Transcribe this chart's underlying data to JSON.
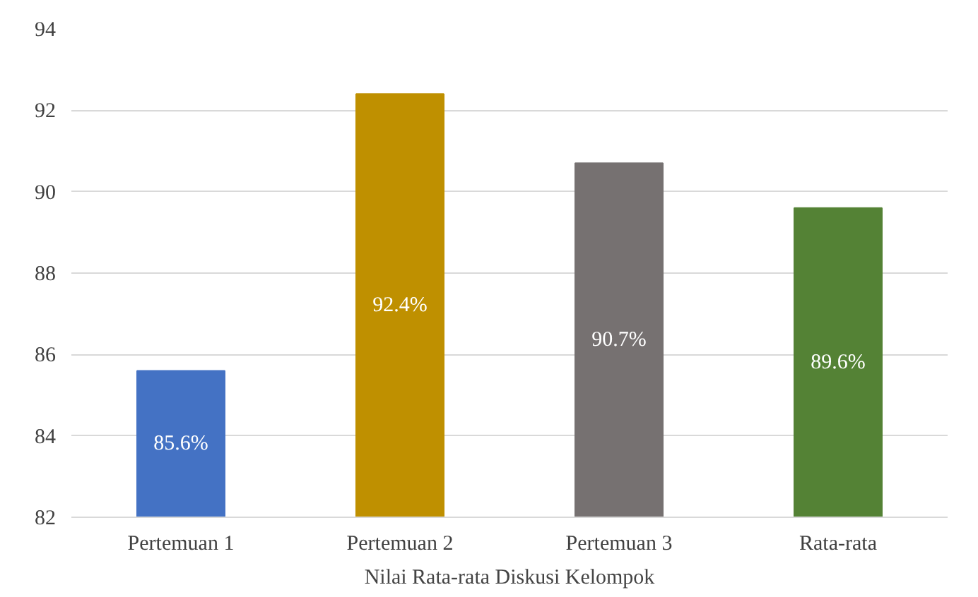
{
  "chart_data": {
    "type": "bar",
    "xlabel": "Nilai Rata-rata Diskusi Kelompok",
    "categories": [
      "Pertemuan 1",
      "Pertemuan 2",
      "Pertemuan 3",
      "Rata-rata"
    ],
    "values": [
      85.6,
      92.4,
      90.7,
      89.6
    ],
    "colors": [
      "#4472c4",
      "#bf9000",
      "#767171",
      "#548235"
    ],
    "value_labels": [
      "85.6%",
      "92.4%",
      "90.7%",
      "89.6%"
    ],
    "ylim": [
      82,
      94
    ],
    "yticks": [
      82,
      84,
      86,
      88,
      90,
      92,
      94
    ],
    "grid": "y"
  }
}
